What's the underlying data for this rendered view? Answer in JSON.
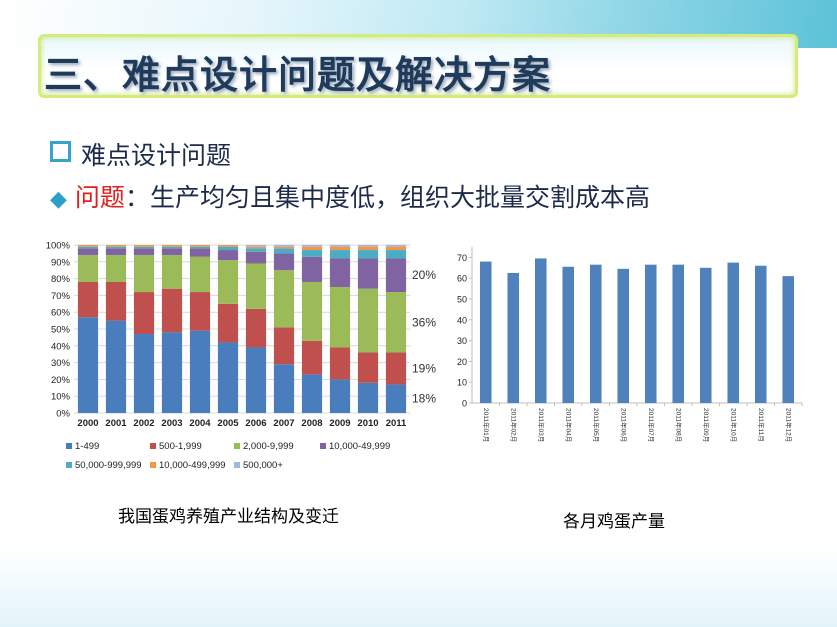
{
  "slide": {
    "title": "三、难点设计问题及解决方案",
    "bullet1": "难点设计问题",
    "bullet2_label": "问题",
    "bullet2_text": "：生产均匀且集中度低，组织大批量交割成本高"
  },
  "captions": {
    "left": "我国蛋鸡养殖产业结构及变迁",
    "right": "各月鸡蛋产量"
  },
  "colors": {
    "s1": "#4a7dbd",
    "s2": "#c0504d",
    "s3": "#9bbb59",
    "s4": "#8064a2",
    "s5": "#4bacc6",
    "s6": "#f79646",
    "s7": "#9eb8de",
    "bar": "#4f81bd"
  },
  "chart_data": [
    {
      "type": "bar",
      "stacked": true,
      "percent": true,
      "categories": [
        "2000",
        "2001",
        "2002",
        "2003",
        "2004",
        "2005",
        "2006",
        "2007",
        "2008",
        "2009",
        "2010",
        "2011"
      ],
      "yticks": [
        "0%",
        "10%",
        "20%",
        "30%",
        "40%",
        "50%",
        "60%",
        "70%",
        "80%",
        "90%",
        "100%"
      ],
      "series": [
        {
          "name": "1-499",
          "values": [
            57,
            55,
            47,
            48,
            49,
            42,
            39,
            29,
            23,
            20,
            18,
            17
          ]
        },
        {
          "name": "500-1,999",
          "values": [
            21,
            23,
            25,
            26,
            23,
            23,
            23,
            22,
            20,
            19,
            18,
            19
          ]
        },
        {
          "name": "2,000-9,999",
          "values": [
            16,
            16,
            22,
            20,
            21,
            26,
            27,
            34,
            35,
            36,
            38,
            36
          ]
        },
        {
          "name": "10,000-49,999",
          "values": [
            4,
            4,
            4,
            4,
            5,
            6,
            7,
            10,
            15,
            17,
            18,
            20
          ]
        },
        {
          "name": "50,000-999,999",
          "values": [
            1,
            1,
            1,
            1,
            1,
            2,
            2,
            3,
            4,
            5,
            5,
            5
          ]
        },
        {
          "name": "10,000-499,999",
          "values": [
            1,
            1,
            1,
            1,
            1,
            1,
            1,
            1,
            2,
            2,
            2,
            2
          ]
        },
        {
          "name": "500,000+",
          "values": [
            0,
            0,
            0,
            0,
            0,
            0,
            1,
            1,
            1,
            1,
            1,
            1
          ]
        }
      ],
      "annotations": [
        "20%",
        "36%",
        "19%",
        "18%"
      ],
      "ylim": [
        0,
        100
      ]
    },
    {
      "type": "bar",
      "categories": [
        "2011年01月",
        "2011年02月",
        "2011年03月",
        "2011年04月",
        "2011年05月",
        "2011年06月",
        "2011年07月",
        "2011年08月",
        "2011年09月",
        "2011年10月",
        "2011年11月",
        "2011年12月"
      ],
      "values": [
        68,
        62.5,
        69.5,
        65.5,
        66.5,
        64.5,
        66.5,
        66.5,
        65,
        67.5,
        66,
        61
      ],
      "yticks": [
        "0",
        "10",
        "20",
        "30",
        "40",
        "50",
        "60",
        "70"
      ],
      "ylim": [
        0,
        75
      ]
    }
  ]
}
